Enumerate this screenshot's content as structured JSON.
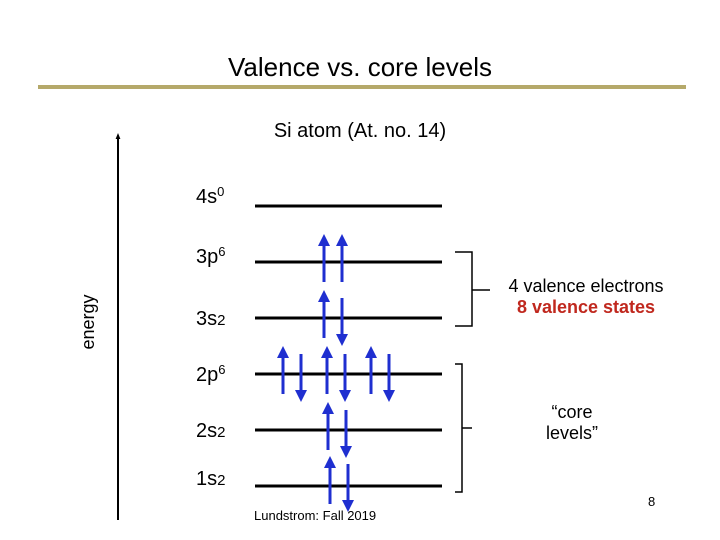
{
  "slide": {
    "title": "Valence vs. core levels",
    "subtitle": "Si atom (At. no. 14)",
    "axis_label": "energy",
    "footer": "Lundstrom: Fall 2019",
    "page_number": "8"
  },
  "levels": [
    {
      "name": "4s",
      "occupancy": "0",
      "electrons": 0
    },
    {
      "name": "3p",
      "occupancy": "6",
      "electrons": 2
    },
    {
      "name": "3s",
      "occupancy": "2",
      "electrons": 2
    },
    {
      "name": "2p",
      "occupancy": "6",
      "electrons": 6
    },
    {
      "name": "2s",
      "occupancy": "2",
      "electrons": 2
    },
    {
      "name": "1s",
      "occupancy": "2",
      "electrons": 2
    }
  ],
  "valence_note": {
    "line1": "4 valence electrons",
    "line2": "8 valence states"
  },
  "core_note": {
    "line1": "“core",
    "line2": "levels”"
  },
  "colors": {
    "arrow": "#1f2fd0",
    "accent_rule": "#b5a96a",
    "valence_states": "#c0281e"
  }
}
